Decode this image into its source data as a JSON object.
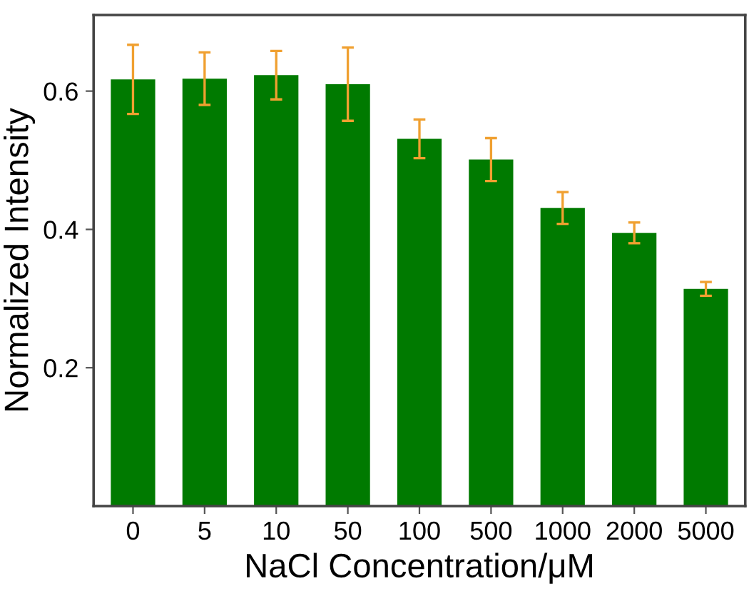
{
  "chart_data": {
    "type": "bar",
    "xlabel": "NaCl Concentration/μM",
    "ylabel": "Normalized Intensity",
    "categories": [
      "0",
      "5",
      "10",
      "50",
      "100",
      "500",
      "1000",
      "2000",
      "5000"
    ],
    "series": [
      {
        "color": "#007a00",
        "values": [
          0.617,
          0.618,
          0.623,
          0.61,
          0.531,
          0.501,
          0.431,
          0.395,
          0.314
        ],
        "errors": [
          0.05,
          0.038,
          0.035,
          0.053,
          0.028,
          0.031,
          0.023,
          0.015,
          0.01
        ]
      }
    ],
    "ylim": [
      0,
      0.71
    ],
    "yticks": [
      0.2,
      0.4,
      0.6
    ],
    "grid": false,
    "legend": false
  }
}
